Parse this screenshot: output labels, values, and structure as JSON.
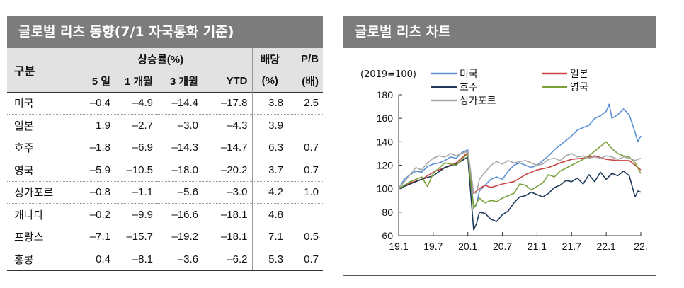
{
  "table_panel": {
    "title": "글로벌 리츠 동향(7/1 자국통화 기준)",
    "headers": {
      "region": "구분",
      "returns_group": "상승률(%)",
      "d5": "5 일",
      "m1": "1 개월",
      "m3": "3 개월",
      "ytd": "YTD",
      "dividend_top": "배당",
      "dividend_unit": "(%)",
      "pb_top": "P/B",
      "pb_unit": "(배)"
    },
    "rows": [
      {
        "name": "미국",
        "d5": "-0.4",
        "m1": "-4.9",
        "m3": "-14.4",
        "ytd": "-17.8",
        "div": "3.8",
        "pb": "2.5"
      },
      {
        "name": "일본",
        "d5": "1.9",
        "m1": "-2.7",
        "m3": "-3.0",
        "ytd": "-4.3",
        "div": "3.9",
        "pb": ""
      },
      {
        "name": "호주",
        "d5": "-1.8",
        "m1": "-6.9",
        "m3": "-14.3",
        "ytd": "-14.7",
        "div": "6.3",
        "pb": "0.7"
      },
      {
        "name": "영국",
        "d5": "-5.9",
        "m1": "-10.5",
        "m3": "-18.0",
        "ytd": "-20.2",
        "div": "3.7",
        "pb": "0.7"
      },
      {
        "name": "싱가포르",
        "d5": "-0.8",
        "m1": "-1.1",
        "m3": "-5.6",
        "ytd": "-3.0",
        "div": "4.2",
        "pb": "1.0"
      },
      {
        "name": "캐나다",
        "d5": "-0.2",
        "m1": "-9.9",
        "m3": "-16.6",
        "ytd": "-18.1",
        "div": "4.8",
        "pb": ""
      },
      {
        "name": "프랑스",
        "d5": "-7.1",
        "m1": "-15.7",
        "m3": "-19.2",
        "ytd": "-18.1",
        "div": "7.1",
        "pb": "0.5"
      },
      {
        "name": "홍콩",
        "d5": "0.4",
        "m1": "-8.1",
        "m3": "-3.6",
        "ytd": "-6.2",
        "div": "5.3",
        "pb": "0.7"
      }
    ]
  },
  "chart_panel": {
    "title": "글로벌 리츠 차트"
  },
  "chart_data": {
    "type": "line",
    "title": "글로벌 리츠 차트",
    "unit_note": "(2019=100)",
    "xlabel": "",
    "ylabel": "",
    "ylim": [
      60,
      180
    ],
    "yticks": [
      60,
      80,
      100,
      120,
      140,
      160,
      180
    ],
    "xlim": [
      0,
      42
    ],
    "xticks": [
      {
        "x": 0,
        "label": "19.1"
      },
      {
        "x": 6,
        "label": "19.7"
      },
      {
        "x": 12,
        "label": "20.1"
      },
      {
        "x": 18,
        "label": "20.7"
      },
      {
        "x": 24,
        "label": "21.1"
      },
      {
        "x": 30,
        "label": "21.7"
      },
      {
        "x": 36,
        "label": "22.1"
      },
      {
        "x": 42,
        "label": "22."
      }
    ],
    "grid": false,
    "legend_position": "top",
    "series": [
      {
        "name": "미국",
        "color": "#5b8fd4",
        "points": [
          [
            0,
            100
          ],
          [
            1,
            108
          ],
          [
            2,
            112
          ],
          [
            3,
            115
          ],
          [
            4,
            114
          ],
          [
            5,
            119
          ],
          [
            6,
            121
          ],
          [
            7,
            122
          ],
          [
            8,
            124
          ],
          [
            9,
            127
          ],
          [
            10,
            126
          ],
          [
            11,
            131
          ],
          [
            12,
            133
          ],
          [
            13,
            84
          ],
          [
            13.5,
            86
          ],
          [
            14,
            98
          ],
          [
            15,
            103
          ],
          [
            16,
            108
          ],
          [
            17,
            110
          ],
          [
            18,
            108
          ],
          [
            19,
            115
          ],
          [
            20,
            120
          ],
          [
            21,
            122
          ],
          [
            22,
            120
          ],
          [
            23,
            118
          ],
          [
            24,
            120
          ],
          [
            25,
            124
          ],
          [
            26,
            128
          ],
          [
            27,
            133
          ],
          [
            28,
            137
          ],
          [
            29,
            141
          ],
          [
            30,
            145
          ],
          [
            31,
            150
          ],
          [
            32,
            152
          ],
          [
            33,
            154
          ],
          [
            34,
            160
          ],
          [
            35,
            162
          ],
          [
            36,
            166
          ],
          [
            36.5,
            172
          ],
          [
            37,
            160
          ],
          [
            38,
            163
          ],
          [
            39,
            168
          ],
          [
            40,
            163
          ],
          [
            41,
            148
          ],
          [
            41.5,
            140
          ],
          [
            42,
            145
          ]
        ]
      },
      {
        "name": "일본",
        "color": "#cc4444",
        "points": [
          [
            0,
            100
          ],
          [
            2,
            105
          ],
          [
            4,
            108
          ],
          [
            6,
            114
          ],
          [
            8,
            118
          ],
          [
            10,
            122
          ],
          [
            12,
            131
          ],
          [
            13,
            96
          ],
          [
            14,
            100
          ],
          [
            15,
            103
          ],
          [
            16,
            101
          ],
          [
            18,
            104
          ],
          [
            20,
            106
          ],
          [
            22,
            112
          ],
          [
            24,
            116
          ],
          [
            26,
            118
          ],
          [
            28,
            122
          ],
          [
            30,
            125
          ],
          [
            32,
            126
          ],
          [
            34,
            128
          ],
          [
            36,
            125
          ],
          [
            38,
            124
          ],
          [
            40,
            124
          ],
          [
            41,
            120
          ],
          [
            42,
            116
          ]
        ]
      },
      {
        "name": "호주",
        "color": "#1f3a5a",
        "points": [
          [
            0,
            100
          ],
          [
            2,
            104
          ],
          [
            4,
            108
          ],
          [
            6,
            111
          ],
          [
            8,
            118
          ],
          [
            10,
            121
          ],
          [
            12,
            127
          ],
          [
            13,
            65
          ],
          [
            13.5,
            70
          ],
          [
            14,
            80
          ],
          [
            15,
            79
          ],
          [
            16,
            74
          ],
          [
            17,
            72
          ],
          [
            18,
            78
          ],
          [
            19,
            81
          ],
          [
            20,
            88
          ],
          [
            21,
            93
          ],
          [
            22,
            94
          ],
          [
            23,
            97
          ],
          [
            24,
            95
          ],
          [
            25,
            93
          ],
          [
            26,
            96
          ],
          [
            27,
            101
          ],
          [
            28,
            103
          ],
          [
            29,
            107
          ],
          [
            30,
            106
          ],
          [
            31,
            109
          ],
          [
            32,
            104
          ],
          [
            33,
            112
          ],
          [
            34,
            106
          ],
          [
            35,
            114
          ],
          [
            36,
            108
          ],
          [
            37,
            113
          ],
          [
            38,
            111
          ],
          [
            39,
            115
          ],
          [
            40,
            111
          ],
          [
            41,
            93
          ],
          [
            41.5,
            98
          ],
          [
            42,
            97
          ]
        ]
      },
      {
        "name": "영국",
        "color": "#7aa03c",
        "points": [
          [
            0,
            100
          ],
          [
            2,
            106
          ],
          [
            4,
            110
          ],
          [
            5,
            102
          ],
          [
            6,
            113
          ],
          [
            8,
            122
          ],
          [
            10,
            120
          ],
          [
            12,
            130
          ],
          [
            13,
            83
          ],
          [
            14,
            92
          ],
          [
            15,
            88
          ],
          [
            16,
            90
          ],
          [
            17,
            89
          ],
          [
            18,
            92
          ],
          [
            20,
            96
          ],
          [
            21,
            104
          ],
          [
            22,
            103
          ],
          [
            23,
            99
          ],
          [
            24,
            102
          ],
          [
            25,
            105
          ],
          [
            26,
            112
          ],
          [
            27,
            110
          ],
          [
            28,
            115
          ],
          [
            30,
            120
          ],
          [
            32,
            125
          ],
          [
            33,
            128
          ],
          [
            34,
            132
          ],
          [
            35,
            136
          ],
          [
            36,
            140
          ],
          [
            37,
            134
          ],
          [
            38,
            130
          ],
          [
            39,
            128
          ],
          [
            40,
            127
          ],
          [
            41,
            122
          ],
          [
            42,
            113
          ]
        ]
      },
      {
        "name": "싱가포르",
        "color": "#a8a8a8",
        "points": [
          [
            0,
            100
          ],
          [
            1,
            106
          ],
          [
            2,
            112
          ],
          [
            3,
            118
          ],
          [
            4,
            116
          ],
          [
            5,
            122
          ],
          [
            6,
            126
          ],
          [
            7,
            128
          ],
          [
            8,
            127
          ],
          [
            9,
            130
          ],
          [
            10,
            128
          ],
          [
            11,
            130
          ],
          [
            12,
            132
          ],
          [
            13,
            97
          ],
          [
            13.5,
            96
          ],
          [
            14,
            108
          ],
          [
            15,
            114
          ],
          [
            16,
            120
          ],
          [
            17,
            123
          ],
          [
            18,
            121
          ],
          [
            19,
            124
          ],
          [
            20,
            122
          ],
          [
            21,
            123
          ],
          [
            22,
            124
          ],
          [
            23,
            122
          ],
          [
            24,
            120
          ],
          [
            25,
            121
          ],
          [
            26,
            125
          ],
          [
            27,
            126
          ],
          [
            28,
            124
          ],
          [
            29,
            128
          ],
          [
            30,
            130
          ],
          [
            31,
            127
          ],
          [
            32,
            128
          ],
          [
            33,
            126
          ],
          [
            34,
            127
          ],
          [
            35,
            126
          ],
          [
            36,
            128
          ],
          [
            37,
            127
          ],
          [
            38,
            125
          ],
          [
            39,
            127
          ],
          [
            40,
            126
          ],
          [
            41,
            124
          ],
          [
            42,
            126
          ]
        ]
      }
    ]
  }
}
